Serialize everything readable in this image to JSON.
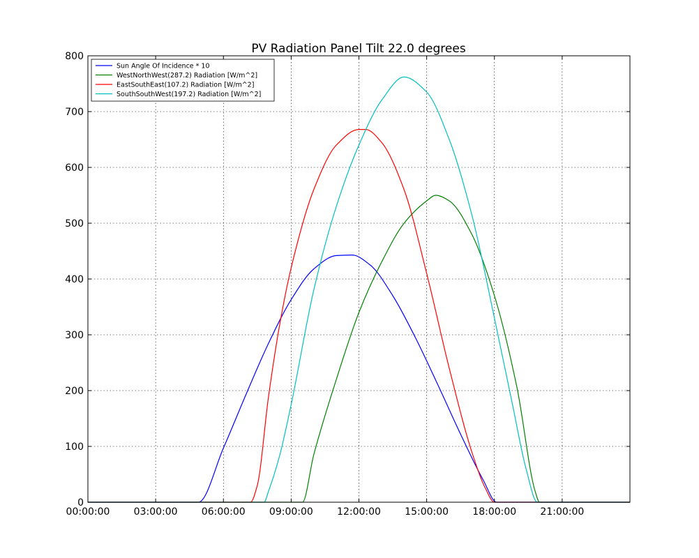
{
  "chart_data": {
    "type": "line",
    "title": "PV Radiation Panel Tilt 22.0 degrees",
    "xlabel": "",
    "ylabel": "",
    "xlim": [
      0,
      24
    ],
    "ylim": [
      0,
      800
    ],
    "grid": true,
    "legend_position": "top-left",
    "x_ticks": [
      0,
      3,
      6,
      9,
      12,
      15,
      18,
      21
    ],
    "x_tick_labels": [
      "00:00:00",
      "03:00:00",
      "06:00:00",
      "09:00:00",
      "12:00:00",
      "15:00:00",
      "18:00:00",
      "21:00:00"
    ],
    "y_ticks": [
      0,
      100,
      200,
      300,
      400,
      500,
      600,
      700,
      800
    ],
    "y_tick_labels": [
      "0",
      "100",
      "200",
      "300",
      "400",
      "500",
      "600",
      "700",
      "800"
    ],
    "series": [
      {
        "name": "Sun Angle Of Incidence * 10",
        "color": "#0000ff",
        "x": [
          0,
          4.9,
          6.0,
          7.0,
          8.0,
          9.0,
          10.0,
          11.0,
          11.7,
          12.5,
          13.5,
          14.5,
          15.5,
          16.5,
          17.5,
          18.1,
          19.0,
          21.0,
          24.0
        ],
        "y": [
          0,
          0,
          97,
          193,
          285,
          363,
          418,
          442,
          443,
          425,
          370,
          295,
          210,
          122,
          40,
          0,
          0,
          0,
          0
        ]
      },
      {
        "name": "WestNorthWest(287.2) Radiation [W/m^2]",
        "color": "#008000",
        "x": [
          0,
          9.5,
          10.0,
          11.0,
          12.0,
          13.0,
          14.0,
          15.0,
          15.4,
          16.0,
          17.0,
          18.0,
          19.0,
          19.8,
          20.0,
          24.0
        ],
        "y": [
          0,
          0,
          85,
          220,
          340,
          430,
          500,
          540,
          550,
          540,
          480,
          370,
          205,
          20,
          0,
          0
        ]
      },
      {
        "name": "EastSouthEast(107.2) Radiation [W/m^2]",
        "color": "#ff0000",
        "x": [
          0,
          7.2,
          7.5,
          8.0,
          8.5,
          9.0,
          10.0,
          11.0,
          12.0,
          12.3,
          13.0,
          14.0,
          15.0,
          16.0,
          17.0,
          17.6,
          18.0,
          20.0,
          24.0
        ],
        "y": [
          0,
          0,
          30,
          190,
          320,
          420,
          560,
          640,
          668,
          668,
          645,
          560,
          410,
          240,
          90,
          25,
          0,
          0,
          0
        ]
      },
      {
        "name": "SouthSouthWest(197.2) Radiation [W/m^2]",
        "color": "#00bfbf",
        "x": [
          0,
          7.8,
          8.0,
          8.5,
          9.0,
          10.0,
          11.0,
          12.0,
          13.0,
          14.0,
          15.0,
          16.0,
          17.0,
          18.0,
          18.8,
          19.4,
          19.9,
          20.1,
          24.0
        ],
        "y": [
          0,
          0,
          20,
          85,
          175,
          380,
          530,
          640,
          720,
          762,
          735,
          650,
          515,
          330,
          175,
          60,
          0,
          0,
          0
        ]
      }
    ]
  }
}
